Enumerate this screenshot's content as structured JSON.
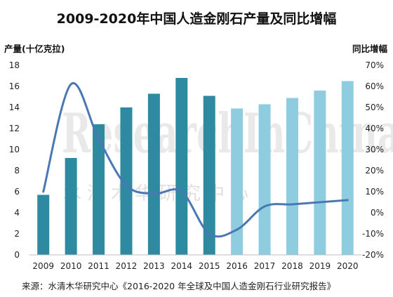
{
  "chart_data": {
    "type": "bar",
    "title": "2009-2020年中国人造金刚石产量及同比增幅",
    "ylabel": "产量(十亿克拉)",
    "y2label": "同比增幅",
    "categories": [
      "2009",
      "2010",
      "2011",
      "2012",
      "2013",
      "2014",
      "2015",
      "2016",
      "2017",
      "2018",
      "2019",
      "2020"
    ],
    "series": [
      {
        "type": "bar",
        "axis": "left",
        "values": [
          5.7,
          9.2,
          12.4,
          14.0,
          15.3,
          16.8,
          15.1,
          13.9,
          14.3,
          14.9,
          15.6,
          16.5
        ],
        "colors": [
          "#2e8aa0",
          "#2e8aa0",
          "#2e8aa0",
          "#2e8aa0",
          "#2e8aa0",
          "#2e8aa0",
          "#2e8aa0",
          "#8ecde0",
          "#8ecde0",
          "#8ecde0",
          "#8ecde0",
          "#8ecde0"
        ]
      },
      {
        "type": "line",
        "axis": "right",
        "values": [
          0.1,
          0.61,
          0.35,
          0.13,
          0.09,
          0.1,
          -0.1,
          -0.08,
          0.03,
          0.04,
          0.05,
          0.06
        ],
        "color": "#4a78b5"
      }
    ],
    "ylim": [
      0,
      18
    ],
    "yticks": [
      0,
      2,
      4,
      6,
      8,
      10,
      12,
      14,
      16,
      18
    ],
    "y2lim": [
      -0.2,
      0.7
    ],
    "y2ticks": [
      "-20%",
      "-10%",
      "0%",
      "10%",
      "20%",
      "30%",
      "40%",
      "50%",
      "60%",
      "70%"
    ],
    "grid": false,
    "legend": "none"
  },
  "source": "来源：水清木华研究中心《2016-2020 年全球及中国人造金刚石行业研究报告》",
  "watermark": "ResearchInChina",
  "watermark_cn": "水清木华研究中心"
}
